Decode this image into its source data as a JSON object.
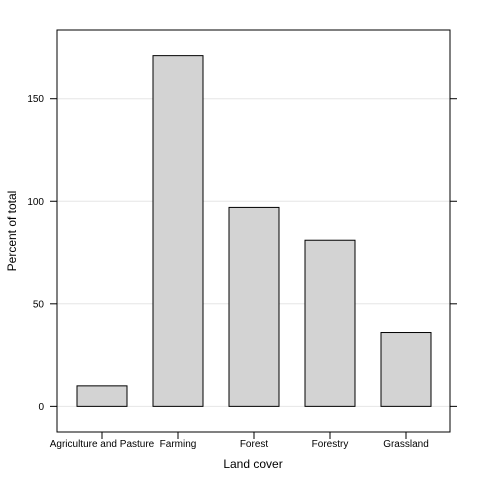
{
  "chart_data": {
    "type": "bar",
    "categories": [
      "Agriculture and Pasture",
      "Farming",
      "Forest",
      "Forestry",
      "Grassland"
    ],
    "values": [
      10,
      171,
      97,
      81,
      36
    ],
    "xlabel": "Land cover",
    "ylabel": "Percent of total",
    "ylim": [
      -12.5,
      183.5
    ],
    "yticks": [
      0,
      50,
      100,
      150
    ],
    "grid": true,
    "colors": {
      "bar_fill": "#d3d3d3",
      "bar_stroke": "#000000",
      "grid": "#e6e6e6"
    }
  }
}
